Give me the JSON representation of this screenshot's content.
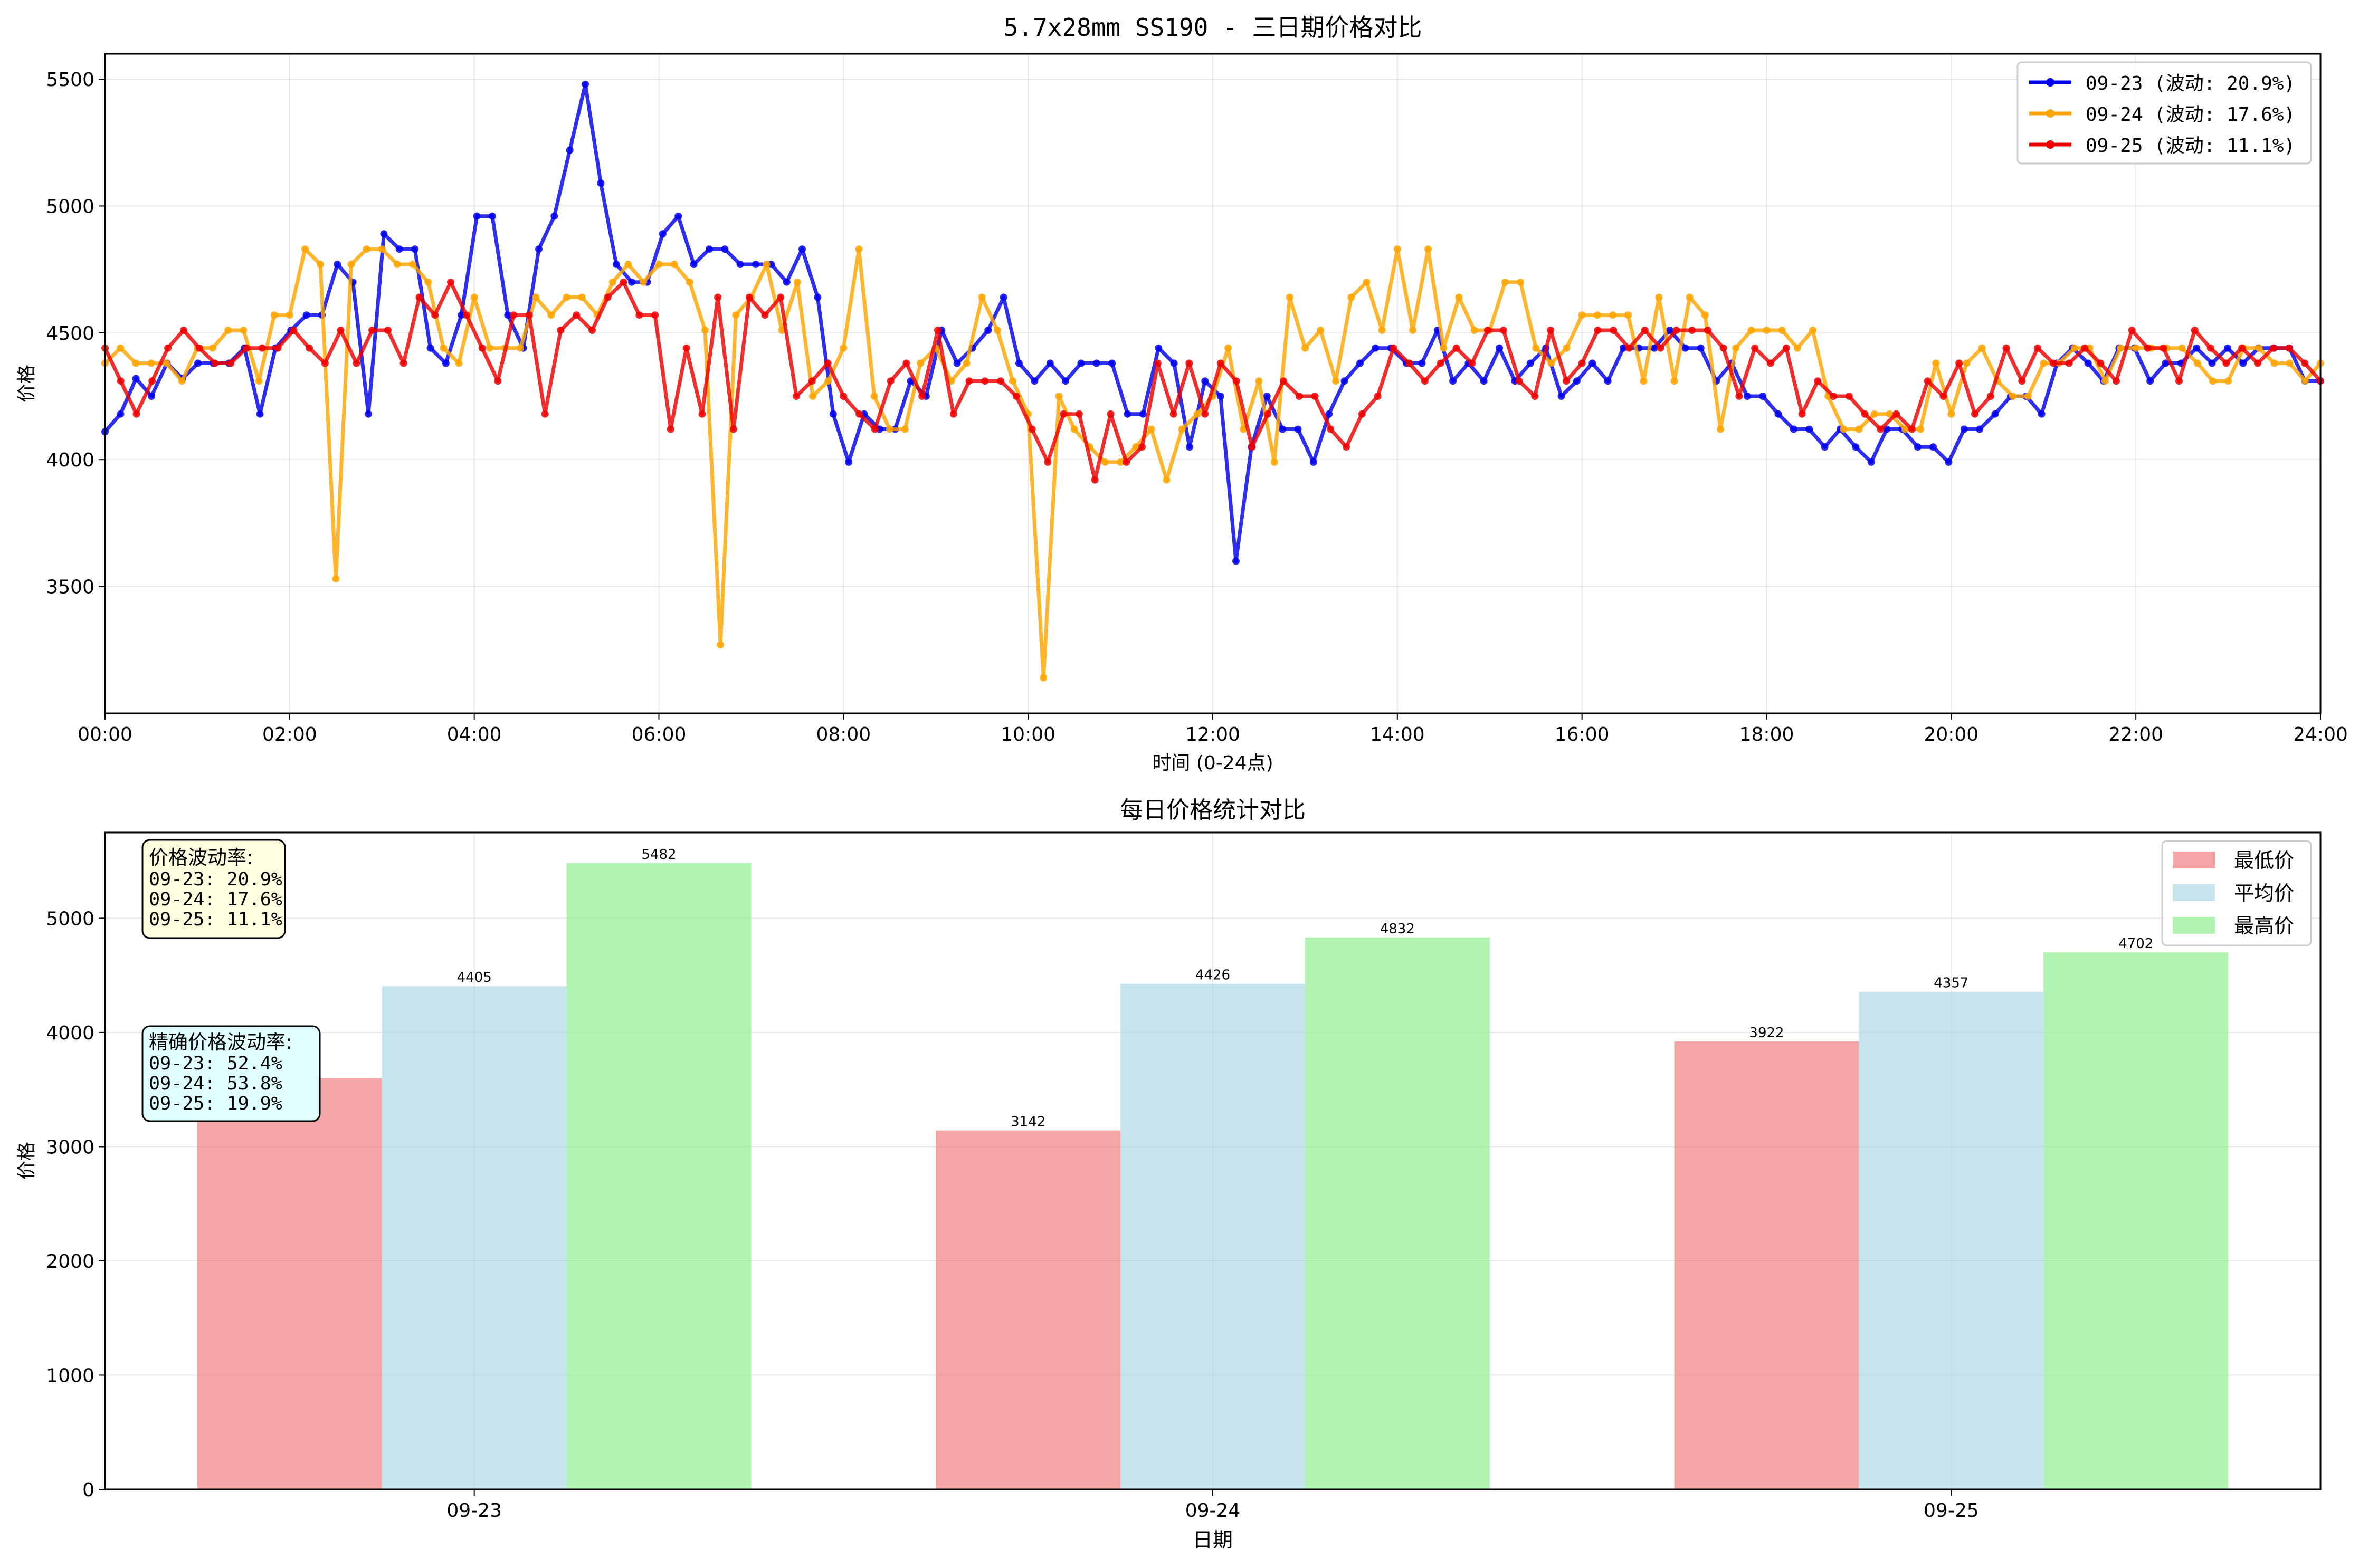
{
  "top_chart": {
    "title": "5.7x28mm SS190 - 三日期价格对比",
    "xlabel": "时间 (0-24点)",
    "ylabel": "价格",
    "legend": [
      {
        "label": "09-23 (波动: 20.9%)",
        "color": "#0000ee"
      },
      {
        "label": "09-24 (波动: 17.6%)",
        "color": "#ffa500"
      },
      {
        "label": "09-25 (波动: 11.1%)",
        "color": "#ee0000"
      }
    ]
  },
  "bottom_chart": {
    "title": "每日价格统计对比",
    "xlabel": "日期",
    "ylabel": "价格",
    "legend": [
      {
        "label": "最低价",
        "color": "#f08080"
      },
      {
        "label": "平均价",
        "color": "#add8e6"
      },
      {
        "label": "最高价",
        "color": "#90ee90"
      }
    ],
    "annotation_1": [
      "价格波动率:",
      "09-23: 20.9%",
      "09-24: 17.6%",
      "09-25: 11.1%"
    ],
    "annotation_2": [
      "精确价格波动率:",
      "09-23: 52.4%",
      "09-24: 53.8%",
      "09-25: 19.9%"
    ]
  },
  "chart_data": [
    {
      "type": "line",
      "title": "5.7x28mm SS190 - 三日期价格对比",
      "xlabel": "时间 (0-24点)",
      "ylabel": "价格",
      "xlim": [
        0,
        24
      ],
      "ylim": [
        3000,
        5600
      ],
      "xticks": [
        "00:00",
        "02:00",
        "04:00",
        "06:00",
        "08:00",
        "10:00",
        "12:00",
        "14:00",
        "16:00",
        "18:00",
        "20:00",
        "22:00",
        "24:00"
      ],
      "yticks": [
        3500,
        4000,
        4500,
        5000,
        5500
      ],
      "grid": true,
      "legend_position": "top-right",
      "x_step_hours": 0.1667,
      "series": [
        {
          "name": "09-23 (波动: 20.9%)",
          "color": "#0000ee",
          "values": [
            4110,
            4180,
            4320,
            4250,
            4380,
            4320,
            4380,
            4380,
            4380,
            4440,
            4180,
            4440,
            4510,
            4570,
            4570,
            4770,
            4700,
            4180,
            4890,
            4830,
            4830,
            4440,
            4380,
            4570,
            4960,
            4960,
            4570,
            4440,
            4830,
            4960,
            5220,
            5480,
            5090,
            4770,
            4700,
            4700,
            4890,
            4960,
            4770,
            4830,
            4830,
            4770,
            4770,
            4770,
            4700,
            4830,
            4640,
            4180,
            3990,
            4180,
            4120,
            4120,
            4310,
            4250,
            4510,
            4380,
            4440,
            4510,
            4640,
            4380,
            4310,
            4380,
            4310,
            4380,
            4380,
            4380,
            4180,
            4180,
            4440,
            4380,
            4050,
            4310,
            4250,
            3600,
            4050,
            4250,
            4120,
            4120,
            3990,
            4180,
            4310,
            4380,
            4440,
            4440,
            4380,
            4380,
            4510,
            4310,
            4380,
            4310,
            4440,
            4310,
            4380,
            4440,
            4250,
            4310,
            4380,
            4310,
            4440,
            4440,
            4440,
            4510,
            4440,
            4440,
            4310,
            4380,
            4250,
            4250,
            4180,
            4120,
            4120,
            4050,
            4120,
            4050,
            3990,
            4120,
            4120,
            4050,
            4050,
            3990,
            4120,
            4120,
            4180,
            4250,
            4250,
            4180,
            4380,
            4440,
            4380,
            4310,
            4440,
            4440,
            4310,
            4380,
            4380,
            4440,
            4380,
            4440,
            4380,
            4440,
            4440,
            4440,
            4310,
            4310
          ]
        },
        {
          "name": "09-24 (波动: 17.6%)",
          "color": "#ffa500",
          "values": [
            4380,
            4440,
            4380,
            4380,
            4380,
            4310,
            4440,
            4440,
            4510,
            4510,
            4310,
            4570,
            4570,
            4830,
            4770,
            3530,
            4770,
            4830,
            4830,
            4770,
            4770,
            4700,
            4440,
            4380,
            4640,
            4440,
            4440,
            4440,
            4640,
            4570,
            4640,
            4640,
            4570,
            4700,
            4770,
            4700,
            4770,
            4770,
            4700,
            4510,
            3270,
            4570,
            4640,
            4770,
            4510,
            4700,
            4250,
            4310,
            4440,
            4830,
            4250,
            4120,
            4120,
            4380,
            4440,
            4310,
            4380,
            4640,
            4510,
            4310,
            4180,
            3140,
            4250,
            4120,
            4050,
            3990,
            3990,
            4050,
            4120,
            3920,
            4120,
            4180,
            4250,
            4440,
            4120,
            4310,
            3990,
            4640,
            4440,
            4510,
            4310,
            4640,
            4700,
            4510,
            4830,
            4510,
            4830,
            4440,
            4640,
            4510,
            4510,
            4700,
            4700,
            4440,
            4380,
            4440,
            4570,
            4570,
            4570,
            4570,
            4310,
            4640,
            4310,
            4640,
            4570,
            4120,
            4440,
            4510,
            4510,
            4510,
            4440,
            4510,
            4250,
            4120,
            4120,
            4180,
            4180,
            4120,
            4120,
            4380,
            4180,
            4380,
            4440,
            4310,
            4250,
            4250,
            4380,
            4380,
            4440,
            4440,
            4310,
            4440,
            4440,
            4440,
            4440,
            4440,
            4380,
            4310,
            4310,
            4440,
            4440,
            4380,
            4380,
            4310,
            4380
          ]
        },
        {
          "name": "09-25 (波动: 11.1%)",
          "color": "#ee0000",
          "values": [
            4440,
            4310,
            4180,
            4310,
            4440,
            4510,
            4440,
            4380,
            4380,
            4440,
            4440,
            4440,
            4510,
            4440,
            4380,
            4510,
            4380,
            4510,
            4510,
            4380,
            4640,
            4570,
            4700,
            4570,
            4440,
            4310,
            4570,
            4570,
            4180,
            4510,
            4570,
            4510,
            4640,
            4700,
            4570,
            4570,
            4120,
            4440,
            4180,
            4640,
            4120,
            4640,
            4570,
            4640,
            4250,
            4310,
            4380,
            4250,
            4180,
            4120,
            4310,
            4380,
            4250,
            4510,
            4180,
            4310,
            4310,
            4310,
            4250,
            4120,
            3990,
            4180,
            4180,
            3920,
            4180,
            3990,
            4050,
            4380,
            4180,
            4380,
            4180,
            4380,
            4310,
            4050,
            4180,
            4310,
            4250,
            4250,
            4120,
            4050,
            4180,
            4250,
            4440,
            4380,
            4310,
            4380,
            4440,
            4380,
            4510,
            4510,
            4310,
            4250,
            4510,
            4310,
            4380,
            4510,
            4510,
            4440,
            4510,
            4440,
            4510,
            4510,
            4510,
            4440,
            4250,
            4440,
            4380,
            4440,
            4180,
            4310,
            4250,
            4250,
            4180,
            4120,
            4180,
            4120,
            4310,
            4250,
            4380,
            4180,
            4250,
            4440,
            4310,
            4440,
            4380,
            4380,
            4440,
            4380,
            4310,
            4510,
            4440,
            4440,
            4310,
            4510,
            4440,
            4380,
            4440,
            4380,
            4440,
            4440,
            4380,
            4310
          ]
        }
      ]
    },
    {
      "type": "bar",
      "title": "每日价格统计对比",
      "xlabel": "日期",
      "ylabel": "价格",
      "categories": [
        "09-23",
        "09-24",
        "09-25"
      ],
      "ylim": [
        0,
        5750
      ],
      "yticks": [
        0,
        1000,
        2000,
        3000,
        4000,
        5000
      ],
      "grid": true,
      "legend_position": "top-right",
      "series": [
        {
          "name": "最低价",
          "color": "#f08080",
          "values": [
            3600,
            3142,
            3922
          ],
          "labels": [
            "",
            "3142",
            "3922"
          ]
        },
        {
          "name": "平均价",
          "color": "#add8e6",
          "values": [
            4405,
            4426,
            4357
          ],
          "labels": [
            "4405",
            "4426",
            "4357"
          ]
        },
        {
          "name": "最高价",
          "color": "#90ee90",
          "values": [
            5482,
            4832,
            4702
          ],
          "labels": [
            "5482",
            "4832",
            "4702"
          ]
        }
      ]
    }
  ]
}
